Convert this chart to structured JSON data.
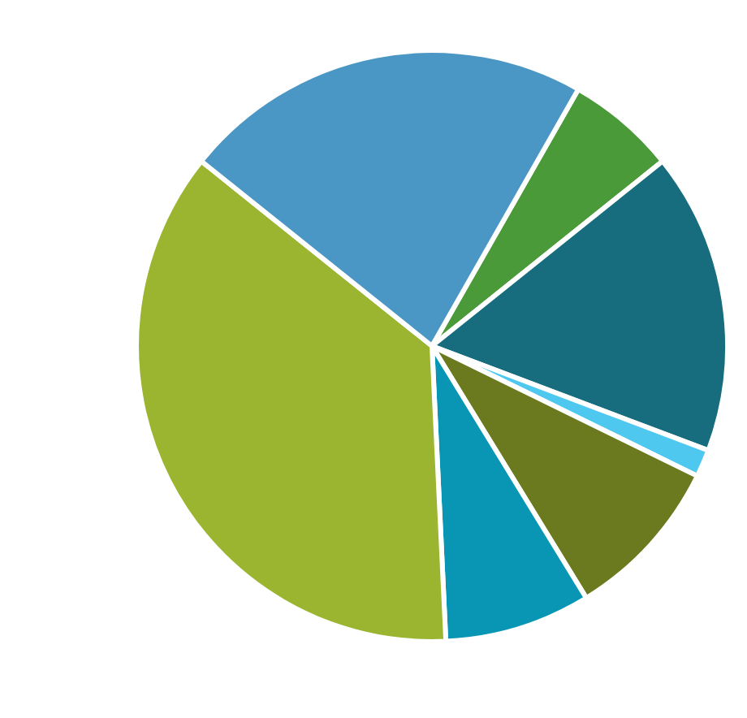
{
  "chart_data": {
    "type": "pie",
    "categories": [
      null,
      null,
      null,
      null,
      null,
      null,
      null
    ],
    "values": [
      6,
      16.5,
      1.5,
      9,
      8,
      36.5,
      22.5
    ],
    "colors": [
      "#4a9a3a",
      "#176c7e",
      "#4fc8f0",
      "#6b7a1e",
      "#0896b4",
      "#9bb531",
      "#4a96c4"
    ]
  }
}
